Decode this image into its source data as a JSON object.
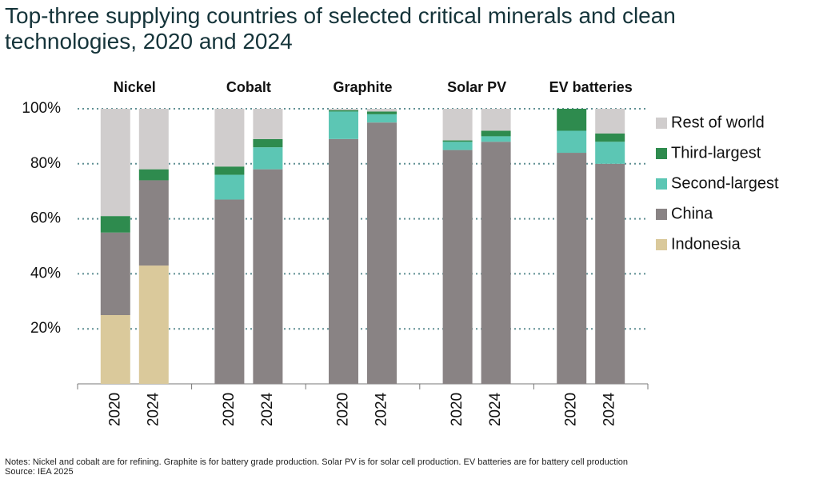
{
  "chart_data": {
    "type": "stacked-bar",
    "title": "Top-three supplying countries of selected critical minerals and clean technologies, 2020 and 2024",
    "groups": [
      "Nickel",
      "Cobalt",
      "Graphite",
      "Solar PV",
      "EV batteries"
    ],
    "categories": [
      "2020",
      "2024",
      "2020",
      "2024",
      "2020",
      "2024",
      "2020",
      "2024",
      "2020",
      "2024"
    ],
    "series": [
      {
        "name": "Indonesia",
        "color": "#dac99b",
        "values": [
          25,
          43,
          0,
          0,
          0,
          0,
          0,
          0,
          0,
          0
        ]
      },
      {
        "name": "China",
        "color": "#898384",
        "values": [
          30,
          31,
          67,
          78,
          89,
          95,
          85,
          88,
          84,
          80
        ]
      },
      {
        "name": "Second-largest",
        "color": "#5cc6b4",
        "values": [
          0,
          0,
          9,
          8,
          10,
          3,
          3,
          2,
          8,
          8
        ]
      },
      {
        "name": "Third-largest",
        "color": "#2e8b4e",
        "values": [
          6,
          4,
          3,
          3,
          0.5,
          1,
          0.5,
          2,
          8,
          3
        ]
      },
      {
        "name": "Rest of world",
        "color": "#d0cdcd",
        "values": [
          39,
          22,
          21,
          11,
          0.5,
          1,
          11.5,
          8,
          0,
          9
        ]
      }
    ],
    "ylim": [
      0,
      100
    ],
    "yticks": [
      {
        "value": 20,
        "label": "20%"
      },
      {
        "value": 40,
        "label": "40%"
      },
      {
        "value": 60,
        "label": "60%"
      },
      {
        "value": 80,
        "label": "80%"
      },
      {
        "value": 100,
        "label": "100%"
      }
    ],
    "grid": true,
    "legend": "right",
    "notes": "Notes: Nickel and cobalt are for refining. Graphite is for battery grade production. Solar PV is for solar cell production. EV batteries are for battery cell production",
    "source": "Source: IEA 2025"
  }
}
